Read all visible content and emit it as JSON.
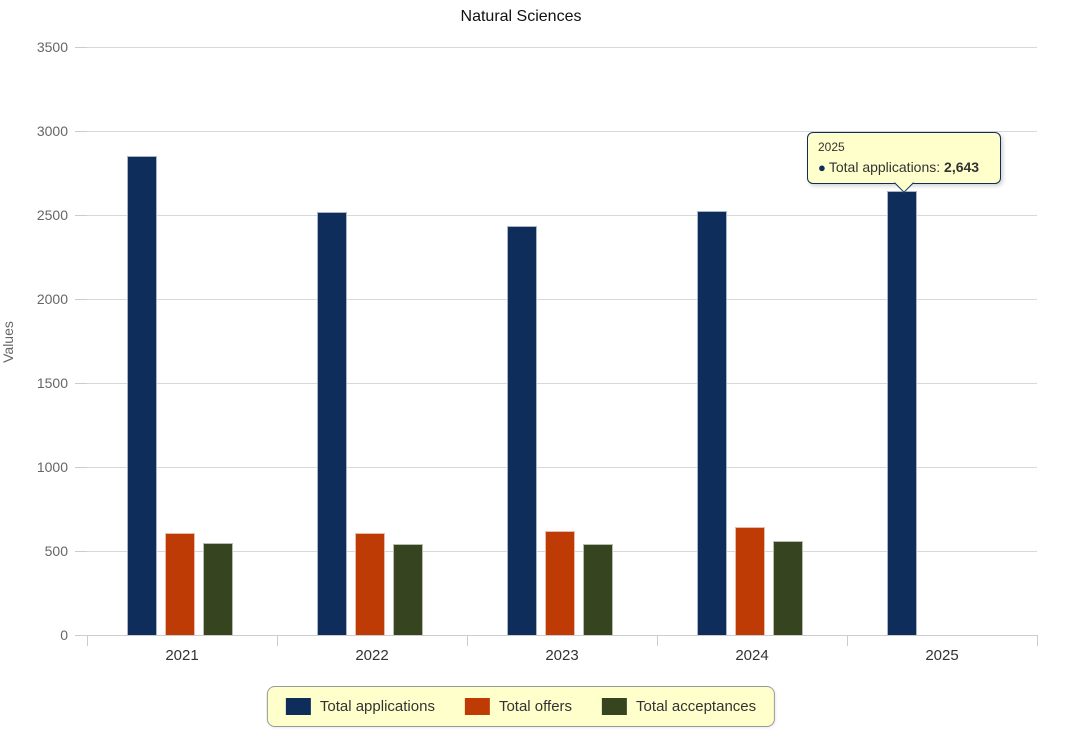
{
  "chart_data": {
    "type": "bar",
    "title": "Natural Sciences",
    "categories": [
      "2021",
      "2022",
      "2023",
      "2024",
      "2025"
    ],
    "series": [
      {
        "name": "Total applications",
        "color": "#0e2d5a",
        "values": [
          2850,
          2520,
          2435,
          2525,
          2643
        ]
      },
      {
        "name": "Total offers",
        "color": "#bf3b06",
        "values": [
          610,
          605,
          620,
          645,
          null
        ]
      },
      {
        "name": "Total acceptances",
        "color": "#374420",
        "values": [
          550,
          540,
          540,
          560,
          null
        ]
      }
    ],
    "xlabel": "",
    "ylabel": "Values",
    "ylim": [
      0,
      3500
    ],
    "yticks": [
      0,
      500,
      1000,
      1500,
      2000,
      2500,
      3000,
      3500
    ],
    "grid": true,
    "legend_position": "bottom"
  },
  "tooltip": {
    "category": "2025",
    "series_name": "Total applications",
    "marker": "●",
    "marker_color": "#0e2d5a",
    "separator": ": ",
    "value_formatted": "2,643",
    "background": "#ffffcc",
    "border_color": "#0e2d5a"
  },
  "legend": {
    "background": "#ffffcc",
    "border_color": "#999999"
  },
  "colors": {
    "gridline": "#d8d8d8",
    "axis_line": "#cccccc",
    "y_label_text": "#666666",
    "x_label_text": "#333333"
  }
}
